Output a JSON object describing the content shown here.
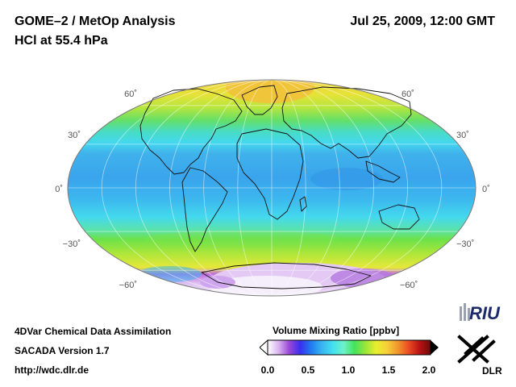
{
  "header": {
    "title_line1": "GOME–2 / MetOp Analysis",
    "title_line2": "HCl at 55.4 hPa",
    "date": "Jul 25, 2009, 12:00 GMT"
  },
  "map": {
    "projection": "mollweide",
    "latitude_labels_left": [
      "60˚",
      "30˚",
      "0˚",
      "−30˚",
      "−60˚"
    ],
    "latitude_labels_right": [
      "60˚",
      "30˚",
      "0˚",
      "−30˚",
      "−60˚"
    ]
  },
  "footer": {
    "line1": "4DVar Chemical Data Assimilation",
    "line2": "SACADA Version 1.7",
    "line3": "http://wdc.dlr.de"
  },
  "colorbar": {
    "title": "Volume Mixing Ratio [ppbv]",
    "ticks": [
      "0.0",
      "0.5",
      "1.0",
      "1.5",
      "2.0"
    ],
    "colors": [
      "#ffffff",
      "#d9b3f0",
      "#9a46d6",
      "#3a2ff0",
      "#1f7cf0",
      "#39b4f0",
      "#42e0f0",
      "#6ef2c8",
      "#43e35c",
      "#9ae53a",
      "#e8ef2e",
      "#f7cf3a",
      "#f0962c",
      "#ea4a23",
      "#b81212",
      "#6c0a0a"
    ]
  },
  "logos": {
    "riu": "RIU",
    "dlr": "DLR"
  }
}
